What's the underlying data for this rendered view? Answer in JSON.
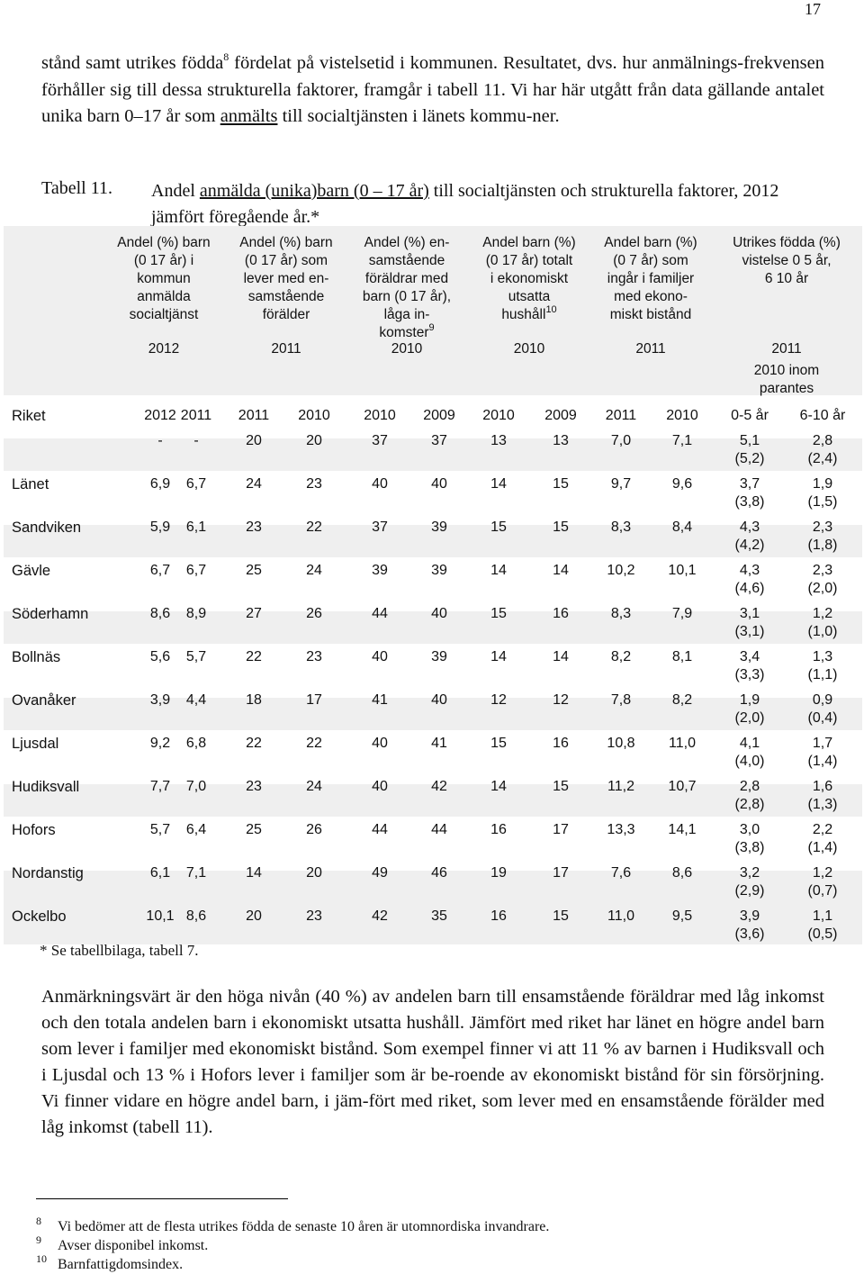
{
  "page_number": "17",
  "intro": {
    "part1": "stånd samt utrikes födda",
    "fn_ref": "8",
    "part2": " fördelat på vistelsetid i kommunen. Resultatet, dvs. hur anmälnings-frekvensen förhåller sig till dessa strukturella faktorer, framgår i tabell 11. Vi har här utgått från data gällande antalet unika barn 0–17 år som ",
    "underlined": "anmälts",
    "part3": " till socialtjänsten i länets kommu-ner."
  },
  "caption": {
    "label": "Tabell 11.",
    "text_pre": "Andel ",
    "text_ul": "anmälda (unika)barn (0 – 17 år)",
    "text_post": " till socialtjänsten och strukturella faktorer, 2012 jämfört föregående år.*"
  },
  "table": {
    "headers": [
      [
        "Andel (%) barn",
        "(0 17 år) i",
        "kommun",
        "anmälda",
        "socialtjänst"
      ],
      [
        "Andel (%) barn",
        "(0 17 år) som",
        "lever med en-",
        "samstående",
        "förälder"
      ],
      [
        "Andel (%) en-",
        "samstående",
        "föräldrar med",
        "barn (0 17 år),",
        "låga in-",
        "komster"
      ],
      [
        "Andel barn (%)",
        "(0 17 år) totalt",
        "i ekonomiskt",
        "utsatta",
        "hushåll"
      ],
      [
        "Andel barn (%)",
        "(0 7 år) som",
        "ingår i familjer",
        "med ekono-",
        "miskt bistånd"
      ],
      [
        "Utrikes födda (%)",
        "vistelse 0 5 år,",
        "6 10 år"
      ]
    ],
    "header_sup_3": "9",
    "header_sup_4": "10",
    "header_years": [
      "2012",
      "2011",
      "2010",
      "2010",
      "2011",
      "2011"
    ],
    "header_note": [
      "2010 inom",
      "parantes"
    ],
    "riket_label": "Riket",
    "year_row": [
      "2012",
      "2011",
      "2011",
      "2010",
      "2010",
      "2009",
      "2010",
      "2009",
      "2011",
      "2010",
      "0-5 år",
      "6-10 år"
    ],
    "rows": [
      {
        "name": "",
        "v": [
          "-",
          "-",
          "20",
          "20",
          "37",
          "37",
          "13",
          "13",
          "7,0",
          "7,1"
        ],
        "a": "5,1",
        "ap": "(5,2)",
        "b": "2,8",
        "bp": "(2,4)"
      },
      {
        "name": "Länet",
        "v": [
          "6,9",
          "6,7",
          "24",
          "23",
          "40",
          "40",
          "14",
          "15",
          "9,7",
          "9,6"
        ],
        "a": "3,7",
        "ap": "(3,8)",
        "b": "1,9",
        "bp": "(1,5)"
      },
      {
        "name": "Sandviken",
        "v": [
          "5,9",
          "6,1",
          "23",
          "22",
          "37",
          "39",
          "15",
          "15",
          "8,3",
          "8,4"
        ],
        "a": "4,3",
        "ap": "(4,2)",
        "b": "2,3",
        "bp": "(1,8)"
      },
      {
        "name": "Gävle",
        "v": [
          "6,7",
          "6,7",
          "25",
          "24",
          "39",
          "39",
          "14",
          "14",
          "10,2",
          "10,1"
        ],
        "a": "4,3",
        "ap": "(4,6)",
        "b": "2,3",
        "bp": "(2,0)"
      },
      {
        "name": "Söderhamn",
        "v": [
          "8,6",
          "8,9",
          "27",
          "26",
          "44",
          "40",
          "15",
          "16",
          "8,3",
          "7,9"
        ],
        "a": "3,1",
        "ap": "(3,1)",
        "b": "1,2",
        "bp": "(1,0)"
      },
      {
        "name": "Bollnäs",
        "v": [
          "5,6",
          "5,7",
          "22",
          "23",
          "40",
          "39",
          "14",
          "14",
          "8,2",
          "8,1"
        ],
        "a": "3,4",
        "ap": "(3,3)",
        "b": "1,3",
        "bp": "(1,1)"
      },
      {
        "name": "Ovanåker",
        "v": [
          "3,9",
          "4,4",
          "18",
          "17",
          "41",
          "40",
          "12",
          "12",
          "7,8",
          "8,2"
        ],
        "a": "1,9",
        "ap": "(2,0)",
        "b": "0,9",
        "bp": "(0,4)"
      },
      {
        "name": "Ljusdal",
        "v": [
          "9,2",
          "6,8",
          "22",
          "22",
          "40",
          "41",
          "15",
          "16",
          "10,8",
          "11,0"
        ],
        "a": "4,1",
        "ap": "(4,0)",
        "b": "1,7",
        "bp": "(1,4)"
      },
      {
        "name": "Hudiksvall",
        "v": [
          "7,7",
          "7,0",
          "23",
          "24",
          "40",
          "42",
          "14",
          "15",
          "11,2",
          "10,7"
        ],
        "a": "2,8",
        "ap": "(2,8)",
        "b": "1,6",
        "bp": "(1,3)"
      },
      {
        "name": "Hofors",
        "v": [
          "5,7",
          "6,4",
          "25",
          "26",
          "44",
          "44",
          "16",
          "17",
          "13,3",
          "14,1"
        ],
        "a": "3,0",
        "ap": "(3,8)",
        "b": "2,2",
        "bp": "(1,4)"
      },
      {
        "name": "Nordanstig",
        "v": [
          "6,1",
          "7,1",
          "14",
          "20",
          "49",
          "46",
          "19",
          "17",
          "7,6",
          "8,6"
        ],
        "a": "3,2",
        "ap": "(2,9)",
        "b": "1,2",
        "bp": "(0,7)"
      },
      {
        "name": "Ockelbo",
        "v": [
          "10,1",
          "8,6",
          "20",
          "23",
          "42",
          "35",
          "16",
          "15",
          "11,0",
          "9,5"
        ],
        "a": "3,9",
        "ap": "(3,6)",
        "b": "1,1",
        "bp": "(0,5)"
      }
    ]
  },
  "table_footnote": "* Se tabellbilaga, tabell 7.",
  "body_text": "Anmärkningsvärt är den höga nivån (40 %) av andelen barn till ensamstående föräldrar med låg inkomst och den totala andelen barn i ekonomiskt utsatta hushåll. Jämfört med riket har länet en högre andel barn som lever i familjer med ekonomiskt bistånd. Som exempel finner vi att 11 % av barnen i Hudiksvall och i Ljusdal och 13 % i Hofors lever i familjer som är be-roende av ekonomiskt bistånd för sin försörjning. Vi finner vidare en högre andel barn, i jäm-fört med riket, som lever med en ensamstående förälder med låg inkomst (tabell 11).",
  "footnotes": [
    {
      "num": "8",
      "text": "Vi bedömer att de flesta utrikes födda de senaste 10 åren är utomnordiska invandrare."
    },
    {
      "num": "9",
      "text": "Avser disponibel inkomst."
    },
    {
      "num": "10",
      "text": "Barnfattigdomsindex."
    }
  ]
}
